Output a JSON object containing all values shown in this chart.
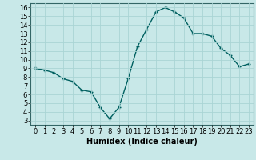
{
  "x": [
    0,
    1,
    2,
    3,
    4,
    5,
    6,
    7,
    8,
    9,
    10,
    11,
    12,
    13,
    14,
    15,
    16,
    17,
    18,
    19,
    20,
    21,
    22,
    23
  ],
  "y": [
    9,
    8.8,
    8.5,
    7.8,
    7.5,
    6.5,
    6.3,
    4.5,
    3.2,
    4.5,
    7.8,
    11.5,
    13.5,
    15.5,
    16.0,
    15.5,
    14.8,
    13.0,
    13.0,
    12.7,
    11.3,
    10.5,
    9.2,
    9.5
  ],
  "line_color": "#006060",
  "marker": "+",
  "marker_size": 3,
  "bg_color": "#c8e8e8",
  "grid_color": "#aad4d4",
  "xlabel": "Humidex (Indice chaleur)",
  "xlabel_fontsize": 7,
  "xlim": [
    -0.5,
    23.5
  ],
  "ylim": [
    2.5,
    16.5
  ],
  "yticks": [
    3,
    4,
    5,
    6,
    7,
    8,
    9,
    10,
    11,
    12,
    13,
    14,
    15,
    16
  ],
  "xticks": [
    0,
    1,
    2,
    3,
    4,
    5,
    6,
    7,
    8,
    9,
    10,
    11,
    12,
    13,
    14,
    15,
    16,
    17,
    18,
    19,
    20,
    21,
    22,
    23
  ],
  "tick_fontsize": 6,
  "line_width": 1.0
}
